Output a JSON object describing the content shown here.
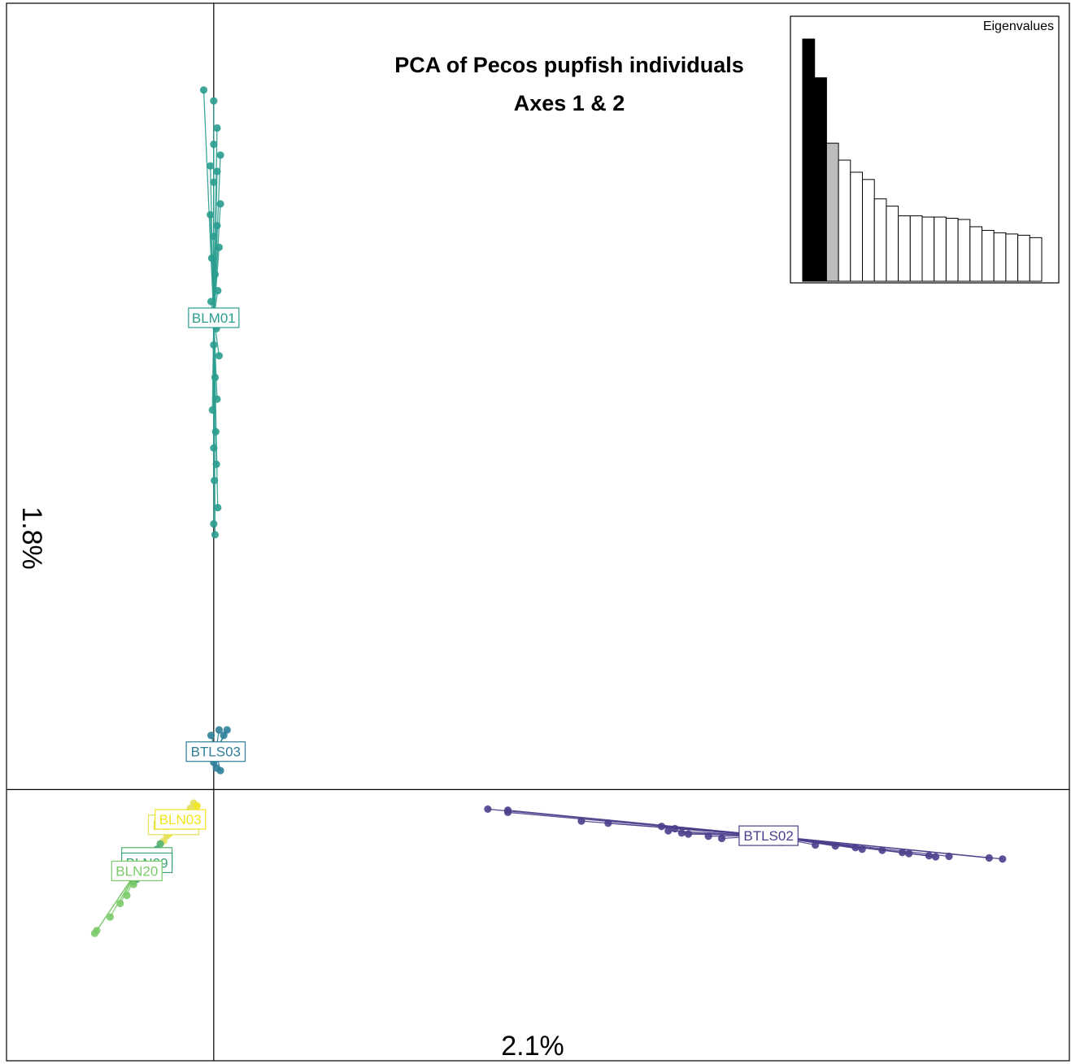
{
  "chart_data": {
    "type": "scatter",
    "title": "PCA of Pecos pupfish individuals",
    "subtitle": "Axes 1 & 2",
    "xlabel": "2.1%",
    "ylabel": "1.8%",
    "xlim": [
      -0.31,
      1.28
    ],
    "ylim": [
      -0.5,
      1.45
    ],
    "origin": [
      0,
      0
    ],
    "groups": [
      {
        "name": "BLM01",
        "color": "#2A9D8F",
        "centroid": [
          0.0,
          0.87
        ],
        "points": [
          [
            -0.015,
            1.29
          ],
          [
            0.0,
            1.27
          ],
          [
            0.005,
            1.22
          ],
          [
            0.0,
            1.19
          ],
          [
            0.01,
            1.17
          ],
          [
            -0.005,
            1.15
          ],
          [
            0.005,
            1.14
          ],
          [
            0.0,
            1.12
          ],
          [
            0.01,
            1.08
          ],
          [
            -0.005,
            1.06
          ],
          [
            0.005,
            1.04
          ],
          [
            0.0,
            1.02
          ],
          [
            0.008,
            1.0
          ],
          [
            -0.003,
            0.98
          ],
          [
            0.002,
            0.95
          ],
          [
            0.006,
            0.92
          ],
          [
            -0.004,
            0.9
          ],
          [
            0.004,
            0.85
          ],
          [
            0.0,
            0.82
          ],
          [
            0.008,
            0.8
          ],
          [
            0.002,
            0.76
          ],
          [
            0.005,
            0.72
          ],
          [
            -0.002,
            0.7
          ],
          [
            0.003,
            0.66
          ],
          [
            0.0,
            0.63
          ],
          [
            0.004,
            0.6
          ],
          [
            0.001,
            0.57
          ],
          [
            0.006,
            0.52
          ],
          [
            0.0,
            0.49
          ],
          [
            0.002,
            0.47
          ]
        ]
      },
      {
        "name": "BTLS03",
        "color": "#2E7E9A",
        "centroid": [
          0.003,
          0.07
        ],
        "points": [
          [
            -0.004,
            0.1
          ],
          [
            0.008,
            0.11
          ],
          [
            0.015,
            0.1
          ],
          [
            0.02,
            0.11
          ],
          [
            0.006,
            0.08
          ],
          [
            0.012,
            0.06
          ],
          [
            0.004,
            0.04
          ],
          [
            0.0,
            0.05
          ],
          [
            0.01,
            0.035
          ],
          [
            0.016,
            0.08
          ]
        ]
      },
      {
        "name": "BTLS02",
        "color": "#4B3F8C",
        "centroid": [
          0.83,
          -0.085
        ],
        "points": [
          [
            0.41,
            -0.036
          ],
          [
            0.44,
            -0.038
          ],
          [
            0.44,
            -0.042
          ],
          [
            0.55,
            -0.058
          ],
          [
            0.59,
            -0.062
          ],
          [
            0.67,
            -0.068
          ],
          [
            0.68,
            -0.076
          ],
          [
            0.69,
            -0.072
          ],
          [
            0.7,
            -0.08
          ],
          [
            0.71,
            -0.082
          ],
          [
            0.74,
            -0.086
          ],
          [
            0.76,
            -0.09
          ],
          [
            0.8,
            -0.094
          ],
          [
            0.85,
            -0.097
          ],
          [
            0.9,
            -0.102
          ],
          [
            0.93,
            -0.104
          ],
          [
            0.96,
            -0.107
          ],
          [
            0.97,
            -0.11
          ],
          [
            1.0,
            -0.112
          ],
          [
            1.03,
            -0.116
          ],
          [
            1.04,
            -0.118
          ],
          [
            1.07,
            -0.122
          ],
          [
            1.08,
            -0.124
          ],
          [
            1.1,
            -0.123
          ],
          [
            1.18,
            -0.128
          ],
          [
            1.16,
            -0.126
          ]
        ]
      },
      {
        "name": "BLN05",
        "color": "#E3E05A",
        "centroid": [
          -0.06,
          -0.065
        ],
        "points": [
          [
            -0.03,
            -0.025
          ],
          [
            -0.035,
            -0.035
          ],
          [
            -0.045,
            -0.05
          ],
          [
            -0.05,
            -0.06
          ],
          [
            -0.06,
            -0.07
          ],
          [
            -0.07,
            -0.085
          ],
          [
            -0.075,
            -0.095
          ]
        ]
      },
      {
        "name": "BLN03",
        "color": "#F1E51D",
        "centroid": [
          -0.05,
          -0.055
        ],
        "points": [
          [
            -0.025,
            -0.03
          ],
          [
            -0.03,
            -0.045
          ],
          [
            -0.04,
            -0.055
          ],
          [
            -0.055,
            -0.065
          ],
          [
            -0.065,
            -0.08
          ]
        ]
      },
      {
        "name": "BLN07",
        "color": "#52B06C",
        "centroid": [
          -0.1,
          -0.125
        ],
        "points": [
          [
            -0.08,
            -0.1
          ],
          [
            -0.09,
            -0.12
          ],
          [
            -0.1,
            -0.13
          ],
          [
            -0.11,
            -0.15
          ],
          [
            -0.12,
            -0.17
          ]
        ]
      },
      {
        "name": "BLN09",
        "color": "#3FA37A",
        "centroid": [
          -0.1,
          -0.135
        ],
        "points": [
          [
            -0.085,
            -0.11
          ],
          [
            -0.095,
            -0.13
          ],
          [
            -0.105,
            -0.145
          ],
          [
            -0.115,
            -0.165
          ]
        ]
      },
      {
        "name": "BLN20",
        "color": "#7BCB6A",
        "centroid": [
          -0.115,
          -0.15
        ],
        "points": [
          [
            -0.1,
            -0.14
          ],
          [
            -0.11,
            -0.16
          ],
          [
            -0.12,
            -0.175
          ],
          [
            -0.13,
            -0.195
          ],
          [
            -0.14,
            -0.21
          ],
          [
            -0.155,
            -0.235
          ],
          [
            -0.175,
            -0.26
          ],
          [
            -0.178,
            -0.265
          ]
        ]
      }
    ],
    "eigenvalues_inset": {
      "title": "Eigenvalues",
      "values": [
        1.0,
        0.84,
        0.57,
        0.5,
        0.45,
        0.42,
        0.34,
        0.31,
        0.27,
        0.27,
        0.265,
        0.265,
        0.26,
        0.255,
        0.225,
        0.21,
        0.2,
        0.195,
        0.19,
        0.18
      ],
      "fills": [
        "#000000",
        "#000000",
        "#BDBDBD",
        "#FFFFFF",
        "#FFFFFF",
        "#FFFFFF",
        "#FFFFFF",
        "#FFFFFF",
        "#FFFFFF",
        "#FFFFFF",
        "#FFFFFF",
        "#FFFFFF",
        "#FFFFFF",
        "#FFFFFF",
        "#FFFFFF",
        "#FFFFFF",
        "#FFFFFF",
        "#FFFFFF",
        "#FFFFFF",
        "#FFFFFF"
      ]
    }
  }
}
